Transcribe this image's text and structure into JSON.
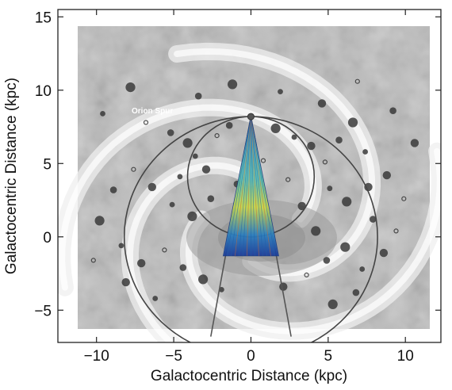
{
  "chart_data": {
    "type": "scatter",
    "title": "",
    "xlabel": "Galactocentric Distance (kpc)",
    "ylabel": "Galactocentric Distance (kpc)",
    "xlim": [
      -12.5,
      12.3
    ],
    "ylim": [
      -7.2,
      15.5
    ],
    "xticks": [
      -10,
      -5,
      0,
      5,
      10
    ],
    "yticks": [
      -5,
      0,
      5,
      10,
      15
    ],
    "xtick_labels": [
      "−10",
      "−5",
      "0",
      "5",
      "10"
    ],
    "ytick_labels": [
      "−5",
      "0",
      "5",
      "10",
      "15"
    ],
    "grid": false,
    "annotations": [
      {
        "text": "Orion Spur",
        "x": -4.5,
        "y": 8.5
      }
    ],
    "sun_position": [
      0,
      8.2
    ],
    "circles": [
      {
        "center": [
          0,
          0
        ],
        "radius": 8.2,
        "kind": "solar circle"
      },
      {
        "center": [
          0,
          4.1
        ],
        "radius": 4.1,
        "kind": "tangent-point circle"
      }
    ],
    "longitude_limits": [
      {
        "from": [
          0,
          8.2
        ],
        "to": [
          -2.6,
          -6.8
        ]
      },
      {
        "from": [
          0,
          8.2
        ],
        "to": [
          2.6,
          -6.8
        ]
      }
    ],
    "survey_wedge": {
      "apex": [
        0,
        8.2
      ],
      "base_left": [
        -1.8,
        -1.3
      ],
      "base_right": [
        1.8,
        -1.3
      ]
    },
    "sources": [
      {
        "x": -6.8,
        "y": 7.8
      },
      {
        "x": -5.2,
        "y": 7.1
      },
      {
        "x": -4.1,
        "y": 6.4
      },
      {
        "x": -3.6,
        "y": 5.5
      },
      {
        "x": -2.9,
        "y": 4.6
      },
      {
        "x": -2.2,
        "y": 6.9
      },
      {
        "x": -1.4,
        "y": 7.6
      },
      {
        "x": 1.6,
        "y": 7.4
      },
      {
        "x": 2.8,
        "y": 6.8
      },
      {
        "x": 3.9,
        "y": 6.2
      },
      {
        "x": 4.8,
        "y": 5.1
      },
      {
        "x": 5.7,
        "y": 6.6
      },
      {
        "x": 6.6,
        "y": 7.8
      },
      {
        "x": 7.4,
        "y": 5.8
      },
      {
        "x": 8.8,
        "y": 4.2
      },
      {
        "x": 9.9,
        "y": 2.6
      },
      {
        "x": 7.9,
        "y": 1.2
      },
      {
        "x": 6.2,
        "y": 2.4
      },
      {
        "x": 5.1,
        "y": 3.3
      },
      {
        "x": 3.3,
        "y": 2.1
      },
      {
        "x": 2.4,
        "y": 3.9
      },
      {
        "x": -2.6,
        "y": 2.6
      },
      {
        "x": -3.8,
        "y": 1.4
      },
      {
        "x": -5.1,
        "y": 2.2
      },
      {
        "x": -6.4,
        "y": 3.4
      },
      {
        "x": -7.6,
        "y": 4.6
      },
      {
        "x": -8.9,
        "y": 3.2
      },
      {
        "x": -9.8,
        "y": 1.1
      },
      {
        "x": -8.4,
        "y": -0.6
      },
      {
        "x": -7.1,
        "y": -1.8
      },
      {
        "x": -5.6,
        "y": -0.9
      },
      {
        "x": -4.4,
        "y": -2.1
      },
      {
        "x": -3.1,
        "y": -2.9
      },
      {
        "x": -1.9,
        "y": -3.6
      },
      {
        "x": 2.1,
        "y": -3.4
      },
      {
        "x": 3.6,
        "y": -2.6
      },
      {
        "x": 4.9,
        "y": -1.6
      },
      {
        "x": 6.1,
        "y": -0.7
      },
      {
        "x": 7.2,
        "y": -2.2
      },
      {
        "x": 8.6,
        "y": -1.1
      },
      {
        "x": 9.4,
        "y": 0.4
      },
      {
        "x": 6.8,
        "y": -3.8
      },
      {
        "x": 5.3,
        "y": -4.6
      },
      {
        "x": -6.2,
        "y": -4.2
      },
      {
        "x": -8.1,
        "y": -3.1
      },
      {
        "x": -10.2,
        "y": -1.6
      },
      {
        "x": -3.4,
        "y": 9.6
      },
      {
        "x": -1.2,
        "y": 10.4
      },
      {
        "x": 1.9,
        "y": 9.9
      },
      {
        "x": 4.6,
        "y": 9.1
      },
      {
        "x": 6.9,
        "y": 10.6
      },
      {
        "x": 9.2,
        "y": 8.6
      },
      {
        "x": -7.8,
        "y": 10.2
      },
      {
        "x": -9.6,
        "y": 8.4
      },
      {
        "x": 10.6,
        "y": 6.4
      },
      {
        "x": 0.8,
        "y": 5.2
      },
      {
        "x": -0.9,
        "y": 3.6
      },
      {
        "x": 4.2,
        "y": 0.4
      },
      {
        "x": -4.6,
        "y": 4.1
      },
      {
        "x": 7.6,
        "y": 3.4
      }
    ]
  }
}
